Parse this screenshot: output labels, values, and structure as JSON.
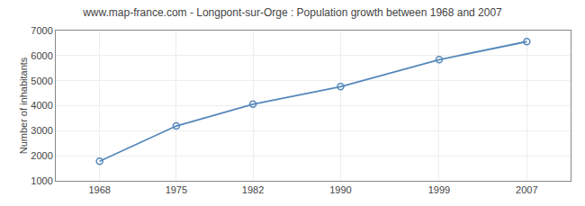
{
  "chart_data": {
    "type": "line",
    "title": "www.map-france.com - Longpont-sur-Orge : Population growth between 1968 and 2007",
    "ylabel": "Number of inhabitants",
    "x": [
      1968,
      1975,
      1982,
      1990,
      1999,
      2007
    ],
    "values": [
      1780,
      3190,
      4060,
      4760,
      5840,
      6560
    ],
    "color": "#5588bb",
    "marker": "circle-open",
    "xlim": [
      1964,
      2011
    ],
    "xticks": [
      1968,
      1975,
      1982,
      1990,
      1999,
      2007
    ],
    "ylim": [
      1000,
      7000
    ],
    "yticks": [
      1000,
      2000,
      3000,
      4000,
      5000,
      6000,
      7000
    ],
    "grid": true
  }
}
